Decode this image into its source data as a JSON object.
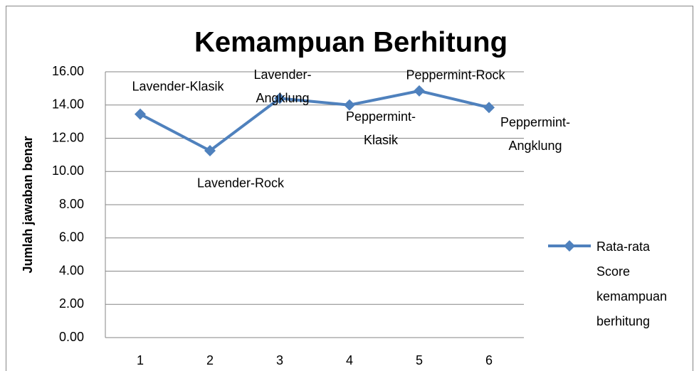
{
  "chart_data": {
    "type": "line",
    "title": "Kemampuan Berhitung",
    "y_label": "Jumlah jawaban benar",
    "categories": [
      "1",
      "2",
      "3",
      "4",
      "5",
      "6"
    ],
    "series": [
      {
        "name": "Rata-rata Score kemampuan berhitung",
        "color": "#4f81bd",
        "values": [
          13.45,
          11.25,
          14.4,
          14.0,
          14.85,
          13.85
        ]
      }
    ],
    "annotations": [
      "Lavender-Klasik",
      "Lavender-Rock",
      "Lavender-Angklung",
      "Peppermint-Klasik",
      "Peppermint-Rock",
      "Peppermint-Angklung"
    ],
    "ylim": [
      0,
      16
    ],
    "yticks": [
      {
        "value": 0,
        "label": "0.00"
      },
      {
        "value": 2,
        "label": "2.00"
      },
      {
        "value": 4,
        "label": "4.00"
      },
      {
        "value": 6,
        "label": "6.00"
      },
      {
        "value": 8,
        "label": "8.00"
      },
      {
        "value": 10,
        "label": "10.00"
      },
      {
        "value": 12,
        "label": "12.00"
      },
      {
        "value": 14,
        "label": "14.00"
      },
      {
        "value": 16,
        "label": "16.00"
      }
    ],
    "grid": true,
    "legend": "right"
  }
}
